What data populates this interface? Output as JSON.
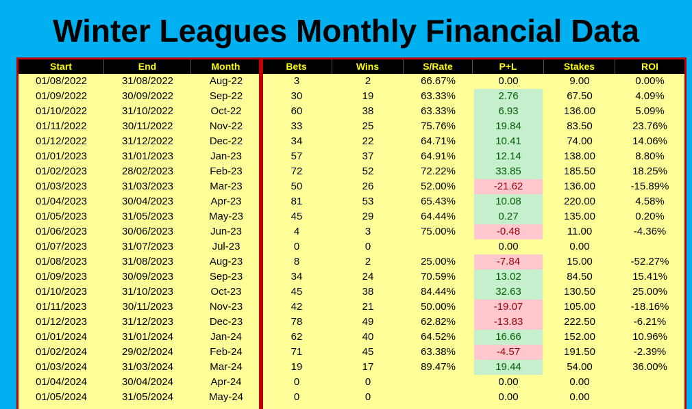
{
  "title": "Winter Leagues Monthly Financial Data",
  "columns": [
    "Start",
    "End",
    "Month",
    "Bets",
    "Wins",
    "S/Rate",
    "P+L",
    "Stakes",
    "ROI"
  ],
  "rows": [
    {
      "start": "01/08/2022",
      "end": "31/08/2022",
      "month": "Aug-22",
      "bets": "3",
      "wins": "2",
      "srate": "66.67%",
      "pl": "0.00",
      "pl_sign": "zero",
      "stakes": "9.00",
      "roi": "0.00%"
    },
    {
      "start": "01/09/2022",
      "end": "30/09/2022",
      "month": "Sep-22",
      "bets": "30",
      "wins": "19",
      "srate": "63.33%",
      "pl": "2.76",
      "pl_sign": "pos",
      "stakes": "67.50",
      "roi": "4.09%"
    },
    {
      "start": "01/10/2022",
      "end": "31/10/2022",
      "month": "Oct-22",
      "bets": "60",
      "wins": "38",
      "srate": "63.33%",
      "pl": "6.93",
      "pl_sign": "pos",
      "stakes": "136.00",
      "roi": "5.09%"
    },
    {
      "start": "01/11/2022",
      "end": "30/11/2022",
      "month": "Nov-22",
      "bets": "33",
      "wins": "25",
      "srate": "75.76%",
      "pl": "19.84",
      "pl_sign": "pos",
      "stakes": "83.50",
      "roi": "23.76%"
    },
    {
      "start": "01/12/2022",
      "end": "31/12/2022",
      "month": "Dec-22",
      "bets": "34",
      "wins": "22",
      "srate": "64.71%",
      "pl": "10.41",
      "pl_sign": "pos",
      "stakes": "74.00",
      "roi": "14.06%"
    },
    {
      "start": "01/01/2023",
      "end": "31/01/2023",
      "month": "Jan-23",
      "bets": "57",
      "wins": "37",
      "srate": "64.91%",
      "pl": "12.14",
      "pl_sign": "pos",
      "stakes": "138.00",
      "roi": "8.80%"
    },
    {
      "start": "01/02/2023",
      "end": "28/02/2023",
      "month": "Feb-23",
      "bets": "72",
      "wins": "52",
      "srate": "72.22%",
      "pl": "33.85",
      "pl_sign": "pos",
      "stakes": "185.50",
      "roi": "18.25%"
    },
    {
      "start": "01/03/2023",
      "end": "31/03/2023",
      "month": "Mar-23",
      "bets": "50",
      "wins": "26",
      "srate": "52.00%",
      "pl": "-21.62",
      "pl_sign": "neg",
      "stakes": "136.00",
      "roi": "-15.89%"
    },
    {
      "start": "01/04/2023",
      "end": "30/04/2023",
      "month": "Apr-23",
      "bets": "81",
      "wins": "53",
      "srate": "65.43%",
      "pl": "10.08",
      "pl_sign": "pos",
      "stakes": "220.00",
      "roi": "4.58%"
    },
    {
      "start": "01/05/2023",
      "end": "31/05/2023",
      "month": "May-23",
      "bets": "45",
      "wins": "29",
      "srate": "64.44%",
      "pl": "0.27",
      "pl_sign": "pos",
      "stakes": "135.00",
      "roi": "0.20%"
    },
    {
      "start": "01/06/2023",
      "end": "30/06/2023",
      "month": "Jun-23",
      "bets": "4",
      "wins": "3",
      "srate": "75.00%",
      "pl": "-0.48",
      "pl_sign": "neg",
      "stakes": "11.00",
      "roi": "-4.36%"
    },
    {
      "start": "01/07/2023",
      "end": "31/07/2023",
      "month": "Jul-23",
      "bets": "0",
      "wins": "0",
      "srate": "",
      "pl": "0.00",
      "pl_sign": "zero",
      "stakes": "0.00",
      "roi": ""
    },
    {
      "start": "01/08/2023",
      "end": "31/08/2023",
      "month": "Aug-23",
      "bets": "8",
      "wins": "2",
      "srate": "25.00%",
      "pl": "-7.84",
      "pl_sign": "neg",
      "stakes": "15.00",
      "roi": "-52.27%"
    },
    {
      "start": "01/09/2023",
      "end": "30/09/2023",
      "month": "Sep-23",
      "bets": "34",
      "wins": "24",
      "srate": "70.59%",
      "pl": "13.02",
      "pl_sign": "pos",
      "stakes": "84.50",
      "roi": "15.41%"
    },
    {
      "start": "01/10/2023",
      "end": "31/10/2023",
      "month": "Oct-23",
      "bets": "45",
      "wins": "38",
      "srate": "84.44%",
      "pl": "32.63",
      "pl_sign": "pos",
      "stakes": "130.50",
      "roi": "25.00%"
    },
    {
      "start": "01/11/2023",
      "end": "30/11/2023",
      "month": "Nov-23",
      "bets": "42",
      "wins": "21",
      "srate": "50.00%",
      "pl": "-19.07",
      "pl_sign": "neg",
      "stakes": "105.00",
      "roi": "-18.16%"
    },
    {
      "start": "01/12/2023",
      "end": "31/12/2023",
      "month": "Dec-23",
      "bets": "78",
      "wins": "49",
      "srate": "62.82%",
      "pl": "-13.83",
      "pl_sign": "neg",
      "stakes": "222.50",
      "roi": "-6.21%"
    },
    {
      "start": "01/01/2024",
      "end": "31/01/2024",
      "month": "Jan-24",
      "bets": "62",
      "wins": "40",
      "srate": "64.52%",
      "pl": "16.66",
      "pl_sign": "pos",
      "stakes": "152.00",
      "roi": "10.96%"
    },
    {
      "start": "01/02/2024",
      "end": "29/02/2024",
      "month": "Feb-24",
      "bets": "71",
      "wins": "45",
      "srate": "63.38%",
      "pl": "-4.57",
      "pl_sign": "neg",
      "stakes": "191.50",
      "roi": "-2.39%"
    },
    {
      "start": "01/03/2024",
      "end": "31/03/2024",
      "month": "Mar-24",
      "bets": "19",
      "wins": "17",
      "srate": "89.47%",
      "pl": "19.44",
      "pl_sign": "pos",
      "stakes": "54.00",
      "roi": "36.00%"
    },
    {
      "start": "01/04/2024",
      "end": "30/04/2024",
      "month": "Apr-24",
      "bets": "0",
      "wins": "0",
      "srate": "",
      "pl": "0.00",
      "pl_sign": "zero",
      "stakes": "0.00",
      "roi": ""
    },
    {
      "start": "01/05/2024",
      "end": "31/05/2024",
      "month": "May-24",
      "bets": "0",
      "wins": "0",
      "srate": "",
      "pl": "0.00",
      "pl_sign": "zero",
      "stakes": "0.00",
      "roi": ""
    }
  ],
  "colors": {
    "background": "#00b0f0",
    "sheet": "#ffff99",
    "header_bg": "#000000",
    "header_text": "#ffff00",
    "frame": "#c00000",
    "positive_fill": "#c6efce",
    "positive_text": "#006100",
    "negative_fill": "#ffc7ce",
    "negative_text": "#9c0006"
  }
}
